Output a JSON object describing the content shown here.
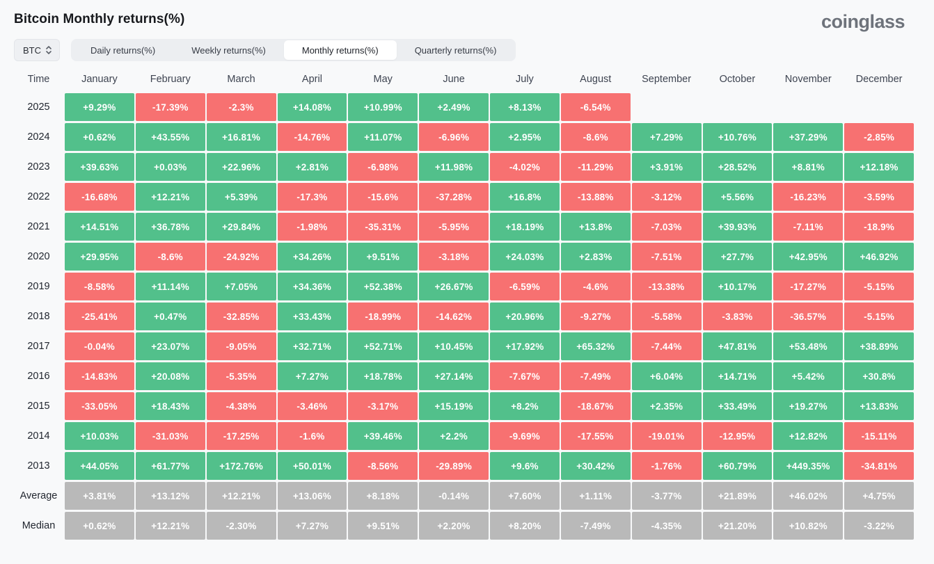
{
  "page": {
    "title": "Bitcoin Monthly returns(%)",
    "brand": "coinglass"
  },
  "controls": {
    "coin_selector": {
      "value": "BTC"
    },
    "tabs": [
      {
        "label": "Daily returns(%)",
        "active": false
      },
      {
        "label": "Weekly returns(%)",
        "active": false
      },
      {
        "label": "Monthly returns(%)",
        "active": true
      },
      {
        "label": "Quarterly returns(%)",
        "active": false
      }
    ]
  },
  "colors": {
    "positive": "#52c08b",
    "negative": "#f77171",
    "summary": "#b9b9b9"
  },
  "table": {
    "time_header": "Time",
    "months": [
      "January",
      "February",
      "March",
      "April",
      "May",
      "June",
      "July",
      "August",
      "September",
      "October",
      "November",
      "December"
    ],
    "rows": [
      {
        "label": "2025",
        "type": "year",
        "values": [
          "+9.29%",
          "-17.39%",
          "-2.3%",
          "+14.08%",
          "+10.99%",
          "+2.49%",
          "+8.13%",
          "-6.54%",
          "",
          "",
          "",
          ""
        ]
      },
      {
        "label": "2024",
        "type": "year",
        "values": [
          "+0.62%",
          "+43.55%",
          "+16.81%",
          "-14.76%",
          "+11.07%",
          "-6.96%",
          "+2.95%",
          "-8.6%",
          "+7.29%",
          "+10.76%",
          "+37.29%",
          "-2.85%"
        ]
      },
      {
        "label": "2023",
        "type": "year",
        "values": [
          "+39.63%",
          "+0.03%",
          "+22.96%",
          "+2.81%",
          "-6.98%",
          "+11.98%",
          "-4.02%",
          "-11.29%",
          "+3.91%",
          "+28.52%",
          "+8.81%",
          "+12.18%"
        ]
      },
      {
        "label": "2022",
        "type": "year",
        "values": [
          "-16.68%",
          "+12.21%",
          "+5.39%",
          "-17.3%",
          "-15.6%",
          "-37.28%",
          "+16.8%",
          "-13.88%",
          "-3.12%",
          "+5.56%",
          "-16.23%",
          "-3.59%"
        ]
      },
      {
        "label": "2021",
        "type": "year",
        "values": [
          "+14.51%",
          "+36.78%",
          "+29.84%",
          "-1.98%",
          "-35.31%",
          "-5.95%",
          "+18.19%",
          "+13.8%",
          "-7.03%",
          "+39.93%",
          "-7.11%",
          "-18.9%"
        ]
      },
      {
        "label": "2020",
        "type": "year",
        "values": [
          "+29.95%",
          "-8.6%",
          "-24.92%",
          "+34.26%",
          "+9.51%",
          "-3.18%",
          "+24.03%",
          "+2.83%",
          "-7.51%",
          "+27.7%",
          "+42.95%",
          "+46.92%"
        ]
      },
      {
        "label": "2019",
        "type": "year",
        "values": [
          "-8.58%",
          "+11.14%",
          "+7.05%",
          "+34.36%",
          "+52.38%",
          "+26.67%",
          "-6.59%",
          "-4.6%",
          "-13.38%",
          "+10.17%",
          "-17.27%",
          "-5.15%"
        ]
      },
      {
        "label": "2018",
        "type": "year",
        "values": [
          "-25.41%",
          "+0.47%",
          "-32.85%",
          "+33.43%",
          "-18.99%",
          "-14.62%",
          "+20.96%",
          "-9.27%",
          "-5.58%",
          "-3.83%",
          "-36.57%",
          "-5.15%"
        ]
      },
      {
        "label": "2017",
        "type": "year",
        "values": [
          "-0.04%",
          "+23.07%",
          "-9.05%",
          "+32.71%",
          "+52.71%",
          "+10.45%",
          "+17.92%",
          "+65.32%",
          "-7.44%",
          "+47.81%",
          "+53.48%",
          "+38.89%"
        ]
      },
      {
        "label": "2016",
        "type": "year",
        "values": [
          "-14.83%",
          "+20.08%",
          "-5.35%",
          "+7.27%",
          "+18.78%",
          "+27.14%",
          "-7.67%",
          "-7.49%",
          "+6.04%",
          "+14.71%",
          "+5.42%",
          "+30.8%"
        ]
      },
      {
        "label": "2015",
        "type": "year",
        "values": [
          "-33.05%",
          "+18.43%",
          "-4.38%",
          "-3.46%",
          "-3.17%",
          "+15.19%",
          "+8.2%",
          "-18.67%",
          "+2.35%",
          "+33.49%",
          "+19.27%",
          "+13.83%"
        ]
      },
      {
        "label": "2014",
        "type": "year",
        "values": [
          "+10.03%",
          "-31.03%",
          "-17.25%",
          "-1.6%",
          "+39.46%",
          "+2.2%",
          "-9.69%",
          "-17.55%",
          "-19.01%",
          "-12.95%",
          "+12.82%",
          "-15.11%"
        ]
      },
      {
        "label": "2013",
        "type": "year",
        "values": [
          "+44.05%",
          "+61.77%",
          "+172.76%",
          "+50.01%",
          "-8.56%",
          "-29.89%",
          "+9.6%",
          "+30.42%",
          "-1.76%",
          "+60.79%",
          "+449.35%",
          "-34.81%"
        ]
      },
      {
        "label": "Average",
        "type": "summary",
        "values": [
          "+3.81%",
          "+13.12%",
          "+12.21%",
          "+13.06%",
          "+8.18%",
          "-0.14%",
          "+7.60%",
          "+1.11%",
          "-3.77%",
          "+21.89%",
          "+46.02%",
          "+4.75%"
        ]
      },
      {
        "label": "Median",
        "type": "summary",
        "values": [
          "+0.62%",
          "+12.21%",
          "-2.30%",
          "+7.27%",
          "+9.51%",
          "+2.20%",
          "+8.20%",
          "-7.49%",
          "-4.35%",
          "+21.20%",
          "+10.82%",
          "-3.22%"
        ]
      }
    ]
  }
}
